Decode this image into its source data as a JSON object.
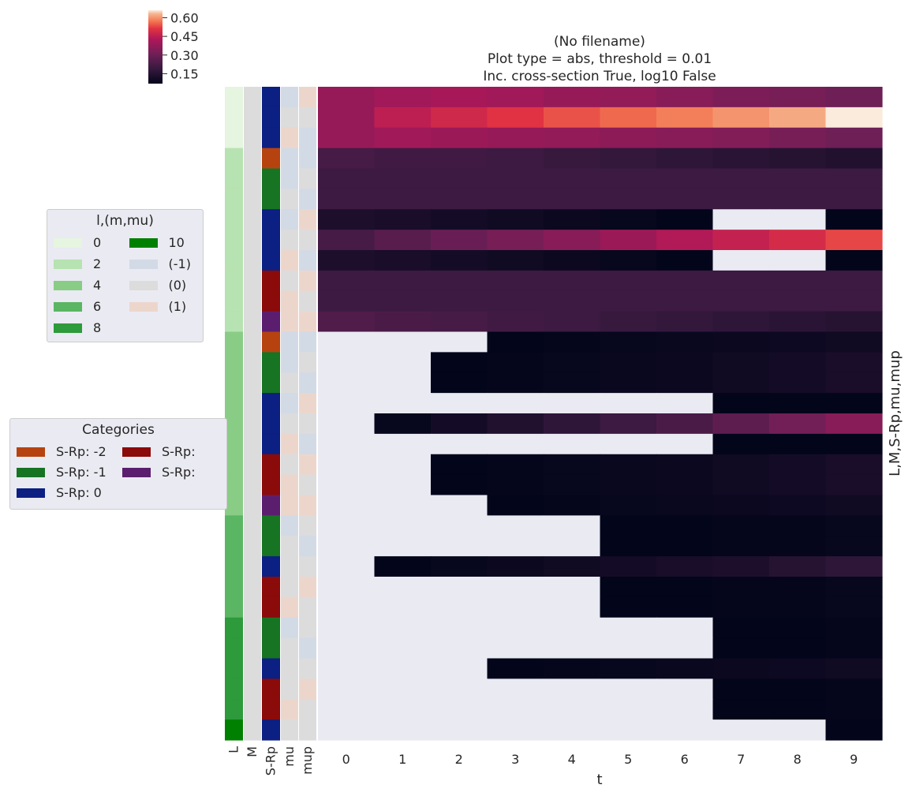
{
  "chart_data": {
    "type": "heatmap",
    "title_lines": [
      "(No filename)",
      "Plot type = abs, threshold = 0.01",
      "Inc. cross-section True, log10 False"
    ],
    "xlabel": "t",
    "ylabel": "L,M,S-Rp,mu,mup",
    "x": [
      "0",
      "1",
      "2",
      "3",
      "4",
      "5",
      "6",
      "7",
      "8",
      "9"
    ],
    "row_color_columns": [
      "L",
      "M",
      "S-Rp",
      "mu",
      "mup"
    ],
    "colorbar": {
      "ticks": [
        "0.60",
        "0.45",
        "0.30",
        "0.15"
      ],
      "tick_values": [
        0.6,
        0.45,
        0.3,
        0.15
      ],
      "range": [
        0.07,
        0.66
      ],
      "colormap": "rocket"
    },
    "rows": [
      {
        "L": 0,
        "M": 0,
        "S-Rp": 0,
        "mu": -1,
        "mup": 1,
        "values": [
          0.38,
          0.4,
          0.41,
          0.4,
          0.38,
          0.37,
          0.35,
          0.33,
          0.32,
          0.3
        ]
      },
      {
        "L": 0,
        "M": 0,
        "S-Rp": 0,
        "mu": 0,
        "mup": 0,
        "values": [
          0.38,
          0.45,
          0.48,
          0.51,
          0.54,
          0.56,
          0.58,
          0.6,
          0.62,
          0.66
        ]
      },
      {
        "L": 0,
        "M": 0,
        "S-Rp": 0,
        "mu": 1,
        "mup": -1,
        "values": [
          0.38,
          0.4,
          0.39,
          0.38,
          0.37,
          0.36,
          0.35,
          0.34,
          0.32,
          0.3
        ]
      },
      {
        "L": 2,
        "M": 0,
        "S-Rp": -2,
        "mu": -1,
        "mup": -1,
        "values": [
          0.22,
          0.21,
          0.21,
          0.2,
          0.19,
          0.18,
          0.17,
          0.16,
          0.15,
          0.14
        ]
      },
      {
        "L": 2,
        "M": 0,
        "S-Rp": -1,
        "mu": -1,
        "mup": 0,
        "values": [
          0.2,
          0.2,
          0.2,
          0.2,
          0.2,
          0.2,
          0.2,
          0.2,
          0.2,
          0.2
        ]
      },
      {
        "L": 2,
        "M": 0,
        "S-Rp": -1,
        "mu": 0,
        "mup": -1,
        "values": [
          0.2,
          0.2,
          0.2,
          0.2,
          0.2,
          0.2,
          0.2,
          0.2,
          0.2,
          0.2
        ]
      },
      {
        "L": 2,
        "M": 0,
        "S-Rp": 0,
        "mu": -1,
        "mup": 1,
        "values": [
          0.13,
          0.12,
          0.11,
          0.1,
          0.09,
          0.08,
          0.07,
          null,
          null,
          0.07
        ]
      },
      {
        "L": 2,
        "M": 0,
        "S-Rp": 0,
        "mu": 0,
        "mup": 0,
        "values": [
          0.22,
          0.26,
          0.29,
          0.32,
          0.35,
          0.39,
          0.43,
          0.46,
          0.49,
          0.53
        ]
      },
      {
        "L": 2,
        "M": 0,
        "S-Rp": 0,
        "mu": 1,
        "mup": -1,
        "values": [
          0.13,
          0.12,
          0.11,
          0.1,
          0.09,
          0.08,
          0.07,
          null,
          null,
          0.07
        ]
      },
      {
        "L": 2,
        "M": 0,
        "S-Rp": 1,
        "mu": 0,
        "mup": 1,
        "values": [
          0.2,
          0.2,
          0.2,
          0.2,
          0.2,
          0.2,
          0.2,
          0.2,
          0.2,
          0.2
        ]
      },
      {
        "L": 2,
        "M": 0,
        "S-Rp": 1,
        "mu": 1,
        "mup": 0,
        "values": [
          0.2,
          0.2,
          0.2,
          0.2,
          0.2,
          0.2,
          0.2,
          0.2,
          0.2,
          0.2
        ]
      },
      {
        "L": 2,
        "M": 0,
        "S-Rp": 2,
        "mu": 1,
        "mup": 1,
        "values": [
          0.24,
          0.23,
          0.22,
          0.21,
          0.2,
          0.19,
          0.18,
          0.17,
          0.16,
          0.15
        ]
      },
      {
        "L": 4,
        "M": 0,
        "S-Rp": -2,
        "mu": -1,
        "mup": -1,
        "values": [
          null,
          null,
          null,
          0.07,
          0.075,
          0.08,
          0.085,
          0.09,
          0.095,
          0.1
        ]
      },
      {
        "L": 4,
        "M": 0,
        "S-Rp": -1,
        "mu": -1,
        "mup": 0,
        "values": [
          null,
          null,
          0.07,
          0.075,
          0.08,
          0.085,
          0.09,
          0.1,
          0.11,
          0.12
        ]
      },
      {
        "L": 4,
        "M": 0,
        "S-Rp": -1,
        "mu": 0,
        "mup": -1,
        "values": [
          null,
          null,
          0.07,
          0.075,
          0.08,
          0.085,
          0.09,
          0.1,
          0.11,
          0.12
        ]
      },
      {
        "L": 4,
        "M": 0,
        "S-Rp": 0,
        "mu": -1,
        "mup": 1,
        "values": [
          null,
          null,
          null,
          null,
          null,
          null,
          null,
          0.07,
          0.07,
          0.07
        ]
      },
      {
        "L": 4,
        "M": 0,
        "S-Rp": 0,
        "mu": 0,
        "mup": 0,
        "values": [
          null,
          0.08,
          0.11,
          0.14,
          0.17,
          0.2,
          0.23,
          0.27,
          0.31,
          0.35
        ]
      },
      {
        "L": 4,
        "M": 0,
        "S-Rp": 0,
        "mu": 1,
        "mup": -1,
        "values": [
          null,
          null,
          null,
          null,
          null,
          null,
          null,
          0.07,
          0.07,
          0.07
        ]
      },
      {
        "L": 4,
        "M": 0,
        "S-Rp": 1,
        "mu": 0,
        "mup": 1,
        "values": [
          null,
          null,
          0.07,
          0.075,
          0.08,
          0.085,
          0.09,
          0.1,
          0.11,
          0.12
        ]
      },
      {
        "L": 4,
        "M": 0,
        "S-Rp": 1,
        "mu": 1,
        "mup": 0,
        "values": [
          null,
          null,
          0.07,
          0.075,
          0.08,
          0.085,
          0.09,
          0.1,
          0.11,
          0.12
        ]
      },
      {
        "L": 4,
        "M": 0,
        "S-Rp": 2,
        "mu": 1,
        "mup": 1,
        "values": [
          null,
          null,
          null,
          0.07,
          0.075,
          0.08,
          0.085,
          0.09,
          0.095,
          0.1
        ]
      },
      {
        "L": 6,
        "M": 0,
        "S-Rp": -1,
        "mu": -1,
        "mup": 0,
        "values": [
          null,
          null,
          null,
          null,
          null,
          0.07,
          0.07,
          0.075,
          0.075,
          0.08
        ]
      },
      {
        "L": 6,
        "M": 0,
        "S-Rp": -1,
        "mu": 0,
        "mup": -1,
        "values": [
          null,
          null,
          null,
          null,
          null,
          0.07,
          0.07,
          0.075,
          0.075,
          0.08
        ]
      },
      {
        "L": 6,
        "M": 0,
        "S-Rp": 0,
        "mu": 0,
        "mup": 0,
        "values": [
          null,
          0.07,
          0.08,
          0.09,
          0.1,
          0.11,
          0.12,
          0.13,
          0.15,
          0.17
        ]
      },
      {
        "L": 6,
        "M": 0,
        "S-Rp": 1,
        "mu": 0,
        "mup": 1,
        "values": [
          null,
          null,
          null,
          null,
          null,
          0.07,
          0.07,
          0.075,
          0.075,
          0.08
        ]
      },
      {
        "L": 6,
        "M": 0,
        "S-Rp": 1,
        "mu": 1,
        "mup": 0,
        "values": [
          null,
          null,
          null,
          null,
          null,
          0.07,
          0.07,
          0.075,
          0.075,
          0.08
        ]
      },
      {
        "L": 8,
        "M": 0,
        "S-Rp": -1,
        "mu": -1,
        "mup": 0,
        "values": [
          null,
          null,
          null,
          null,
          null,
          null,
          null,
          0.07,
          0.07,
          0.075
        ]
      },
      {
        "L": 8,
        "M": 0,
        "S-Rp": -1,
        "mu": 0,
        "mup": -1,
        "values": [
          null,
          null,
          null,
          null,
          null,
          null,
          null,
          0.07,
          0.07,
          0.075
        ]
      },
      {
        "L": 8,
        "M": 0,
        "S-Rp": 0,
        "mu": 0,
        "mup": 0,
        "values": [
          null,
          null,
          null,
          0.07,
          0.075,
          0.08,
          0.085,
          0.09,
          0.095,
          0.1
        ]
      },
      {
        "L": 8,
        "M": 0,
        "S-Rp": 1,
        "mu": 0,
        "mup": 1,
        "values": [
          null,
          null,
          null,
          null,
          null,
          null,
          null,
          0.07,
          0.07,
          0.075
        ]
      },
      {
        "L": 8,
        "M": 0,
        "S-Rp": 1,
        "mu": 1,
        "mup": 0,
        "values": [
          null,
          null,
          null,
          null,
          null,
          null,
          null,
          0.07,
          0.07,
          0.075
        ]
      },
      {
        "L": 10,
        "M": 0,
        "S-Rp": 0,
        "mu": 0,
        "mup": 0,
        "values": [
          null,
          null,
          null,
          null,
          null,
          null,
          null,
          null,
          null,
          0.07
        ]
      }
    ]
  },
  "color_maps": {
    "missing": "#eaeaf2",
    "L": {
      "0": "#e5f5e0",
      "2": "#b7e2b1",
      "4": "#89cc86",
      "6": "#5ab662",
      "8": "#2d9a3b",
      "10": "#008000"
    },
    "M": {
      "0": "#dcdcdc"
    },
    "S-Rp": {
      "-2": "#b6430f",
      "-1": "#167423",
      "0": "#0c1f82",
      "1": "#8b0a0a",
      "2": "#5b1e6e"
    },
    "mu": {
      "-1": "#d2dae6",
      "0": "#dcdcdc",
      "1": "#ecd6cc"
    }
  },
  "legend_lm": {
    "title": "l,(m,mu)",
    "items": [
      {
        "label": "0",
        "color": "#e5f5e0"
      },
      {
        "label": "2",
        "color": "#b7e2b1"
      },
      {
        "label": "4",
        "color": "#89cc86"
      },
      {
        "label": "6",
        "color": "#5ab662"
      },
      {
        "label": "8",
        "color": "#2d9a3b"
      },
      {
        "label": "10",
        "color": "#008000"
      },
      {
        "label": "(-1)",
        "color": "#d2dae6"
      },
      {
        "label": "(0)",
        "color": "#dcdcdc"
      },
      {
        "label": "(1)",
        "color": "#ecd6cc"
      }
    ]
  },
  "legend_cat": {
    "title": "Categories",
    "items": [
      {
        "label": "S-Rp: -2",
        "color": "#b6430f"
      },
      {
        "label": "S-Rp: -1",
        "color": "#167423"
      },
      {
        "label": "S-Rp: 0",
        "color": "#0c1f82"
      },
      {
        "label": "S-Rp:",
        "color": "#8b0a0a"
      },
      {
        "label": "S-Rp:",
        "color": "#5b1e6e"
      }
    ]
  }
}
